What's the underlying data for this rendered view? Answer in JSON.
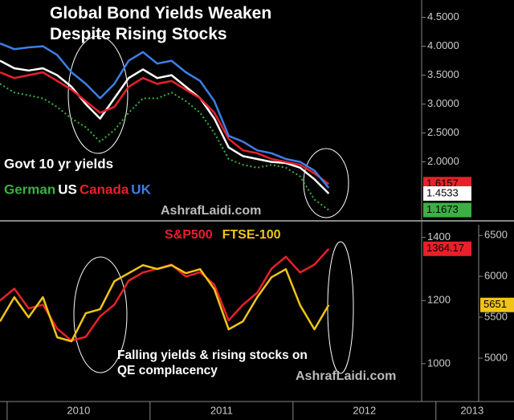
{
  "chart_data": [
    {
      "type": "line",
      "title": "Global Bond Yields Weaken Despite Rising Stocks",
      "annotations": [
        "Govt 10 yr yields",
        "AshrafLaidi.com"
      ],
      "x": [
        2009.95,
        2010.05,
        2010.15,
        2010.25,
        2010.35,
        2010.45,
        2010.55,
        2010.65,
        2010.75,
        2010.85,
        2010.95,
        2011.05,
        2011.15,
        2011.25,
        2011.35,
        2011.45,
        2011.55,
        2011.65,
        2011.75,
        2011.85,
        2011.95,
        2012.05,
        2012.15,
        2012.25
      ],
      "xlim": [
        2009.95,
        2012.9
      ],
      "ylim": [
        1.05,
        4.8
      ],
      "yticks": [
        {
          "value": 2,
          "label": "2.0000"
        },
        {
          "value": 2.5,
          "label": "2.5000"
        },
        {
          "value": 3,
          "label": "3.0000"
        },
        {
          "value": 3.5,
          "label": "3.5000"
        },
        {
          "value": 4,
          "label": "4.0000"
        },
        {
          "value": 4.5,
          "label": "4.5000"
        }
      ],
      "series": [
        {
          "name": "German",
          "color": "#3cb043",
          "dashed": true,
          "values": [
            3.35,
            3.2,
            3.15,
            3.1,
            2.95,
            2.75,
            2.6,
            2.35,
            2.55,
            2.85,
            3.1,
            3.1,
            3.2,
            3.05,
            2.85,
            2.5,
            2.05,
            1.95,
            1.9,
            1.95,
            1.9,
            1.75,
            1.35,
            1.1673
          ]
        },
        {
          "name": "US",
          "color": "#ffffff",
          "values": [
            3.75,
            3.62,
            3.58,
            3.62,
            3.5,
            3.3,
            3.0,
            2.75,
            3.1,
            3.45,
            3.6,
            3.45,
            3.5,
            3.3,
            3.1,
            2.75,
            2.25,
            2.1,
            2.05,
            2.0,
            1.98,
            1.9,
            1.7,
            1.4533
          ]
        },
        {
          "name": "Canada",
          "color": "#e8202a",
          "values": [
            3.55,
            3.45,
            3.5,
            3.55,
            3.4,
            3.25,
            3.05,
            2.85,
            2.95,
            3.3,
            3.45,
            3.35,
            3.4,
            3.25,
            3.1,
            2.85,
            2.4,
            2.2,
            2.15,
            2.05,
            2.0,
            1.95,
            1.8,
            1.6157
          ]
        },
        {
          "name": "UK",
          "color": "#3d7fe6",
          "values": [
            4.05,
            3.95,
            3.98,
            4.0,
            3.85,
            3.55,
            3.35,
            3.1,
            3.35,
            3.75,
            3.9,
            3.7,
            3.75,
            3.55,
            3.4,
            3.05,
            2.45,
            2.35,
            2.2,
            2.15,
            2.05,
            2.0,
            1.85,
            1.55
          ]
        }
      ]
    },
    {
      "type": "line",
      "annotations": [
        "Falling yields & rising stocks on QE complacency",
        "AshrafLaidi.com"
      ],
      "x": [
        2009.95,
        2010.05,
        2010.15,
        2010.25,
        2010.35,
        2010.45,
        2010.55,
        2010.65,
        2010.75,
        2010.85,
        2010.95,
        2011.05,
        2011.15,
        2011.25,
        2011.35,
        2011.45,
        2011.55,
        2011.65,
        2011.75,
        2011.85,
        2011.95,
        2012.05,
        2012.15,
        2012.25
      ],
      "xlim": [
        2009.95,
        2012.9
      ],
      "xticks": [
        2010,
        2011,
        2012,
        2013
      ],
      "ylim": [
        880,
        1440
      ],
      "yticks": [
        1000,
        1200,
        1400
      ],
      "y2lim": [
        4470,
        6630
      ],
      "y2ticks": [
        5000,
        5500,
        6000,
        6500
      ],
      "series": [
        {
          "name": "S&P500",
          "color": "#e8202a",
          "values": [
            1200,
            1238,
            1175,
            1187,
            1111,
            1073,
            1085,
            1150,
            1187,
            1263,
            1289,
            1301,
            1314,
            1276,
            1290,
            1250,
            1137,
            1187,
            1225,
            1301,
            1339,
            1289,
            1314,
            1364.17
          ]
        },
        {
          "name": "FTSE-100",
          "color": "#f0c419",
          "axis": "y2",
          "values": [
            5450,
            5745,
            5500,
            5745,
            5255,
            5206,
            5549,
            5598,
            5941,
            6039,
            6137,
            6090,
            6137,
            6039,
            6088,
            5843,
            5353,
            5451,
            5745,
            5990,
            6088,
            5647,
            5353,
            5651
          ]
        }
      ]
    }
  ]
}
